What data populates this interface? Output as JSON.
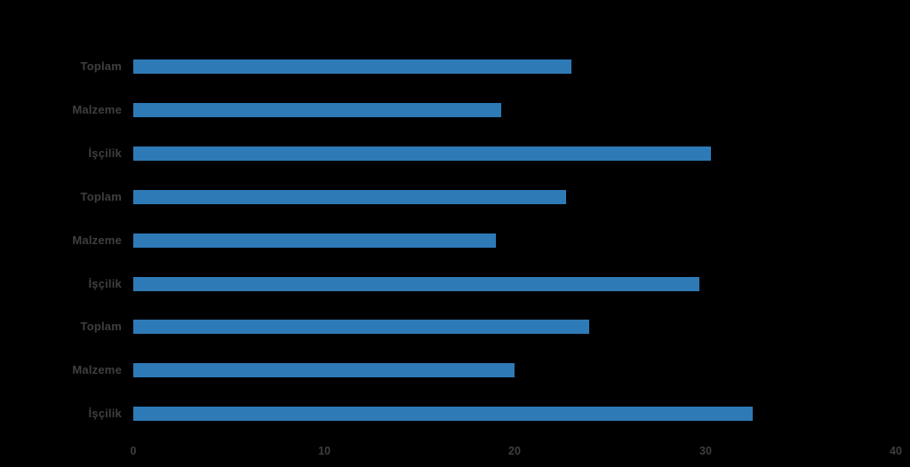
{
  "chart": {
    "background_color": "#000000",
    "bar_color": "#2e7ab7",
    "label_color": "#3f3f3f",
    "tick_color": "#3f3f3f"
  },
  "chart_data": {
    "type": "bar",
    "orientation": "horizontal",
    "title": "",
    "xlabel": "",
    "ylabel": "",
    "categories": [
      "Toplam",
      "Malzeme",
      "İşçilik",
      "Toplam",
      "Malzeme",
      "İşçilik",
      "Toplam",
      "Malzeme",
      "İşçilik"
    ],
    "values": [
      23.0,
      19.3,
      30.3,
      22.7,
      19.0,
      29.7,
      23.9,
      20.0,
      32.5
    ],
    "groups_note": "three repeated label groups of İşçilik/Malzeme/Toplam, no visible group titles",
    "xlim": [
      0,
      40
    ],
    "xticks": [
      0,
      10,
      20,
      30,
      40
    ],
    "grid": false,
    "legend": false,
    "axis_line": false
  }
}
